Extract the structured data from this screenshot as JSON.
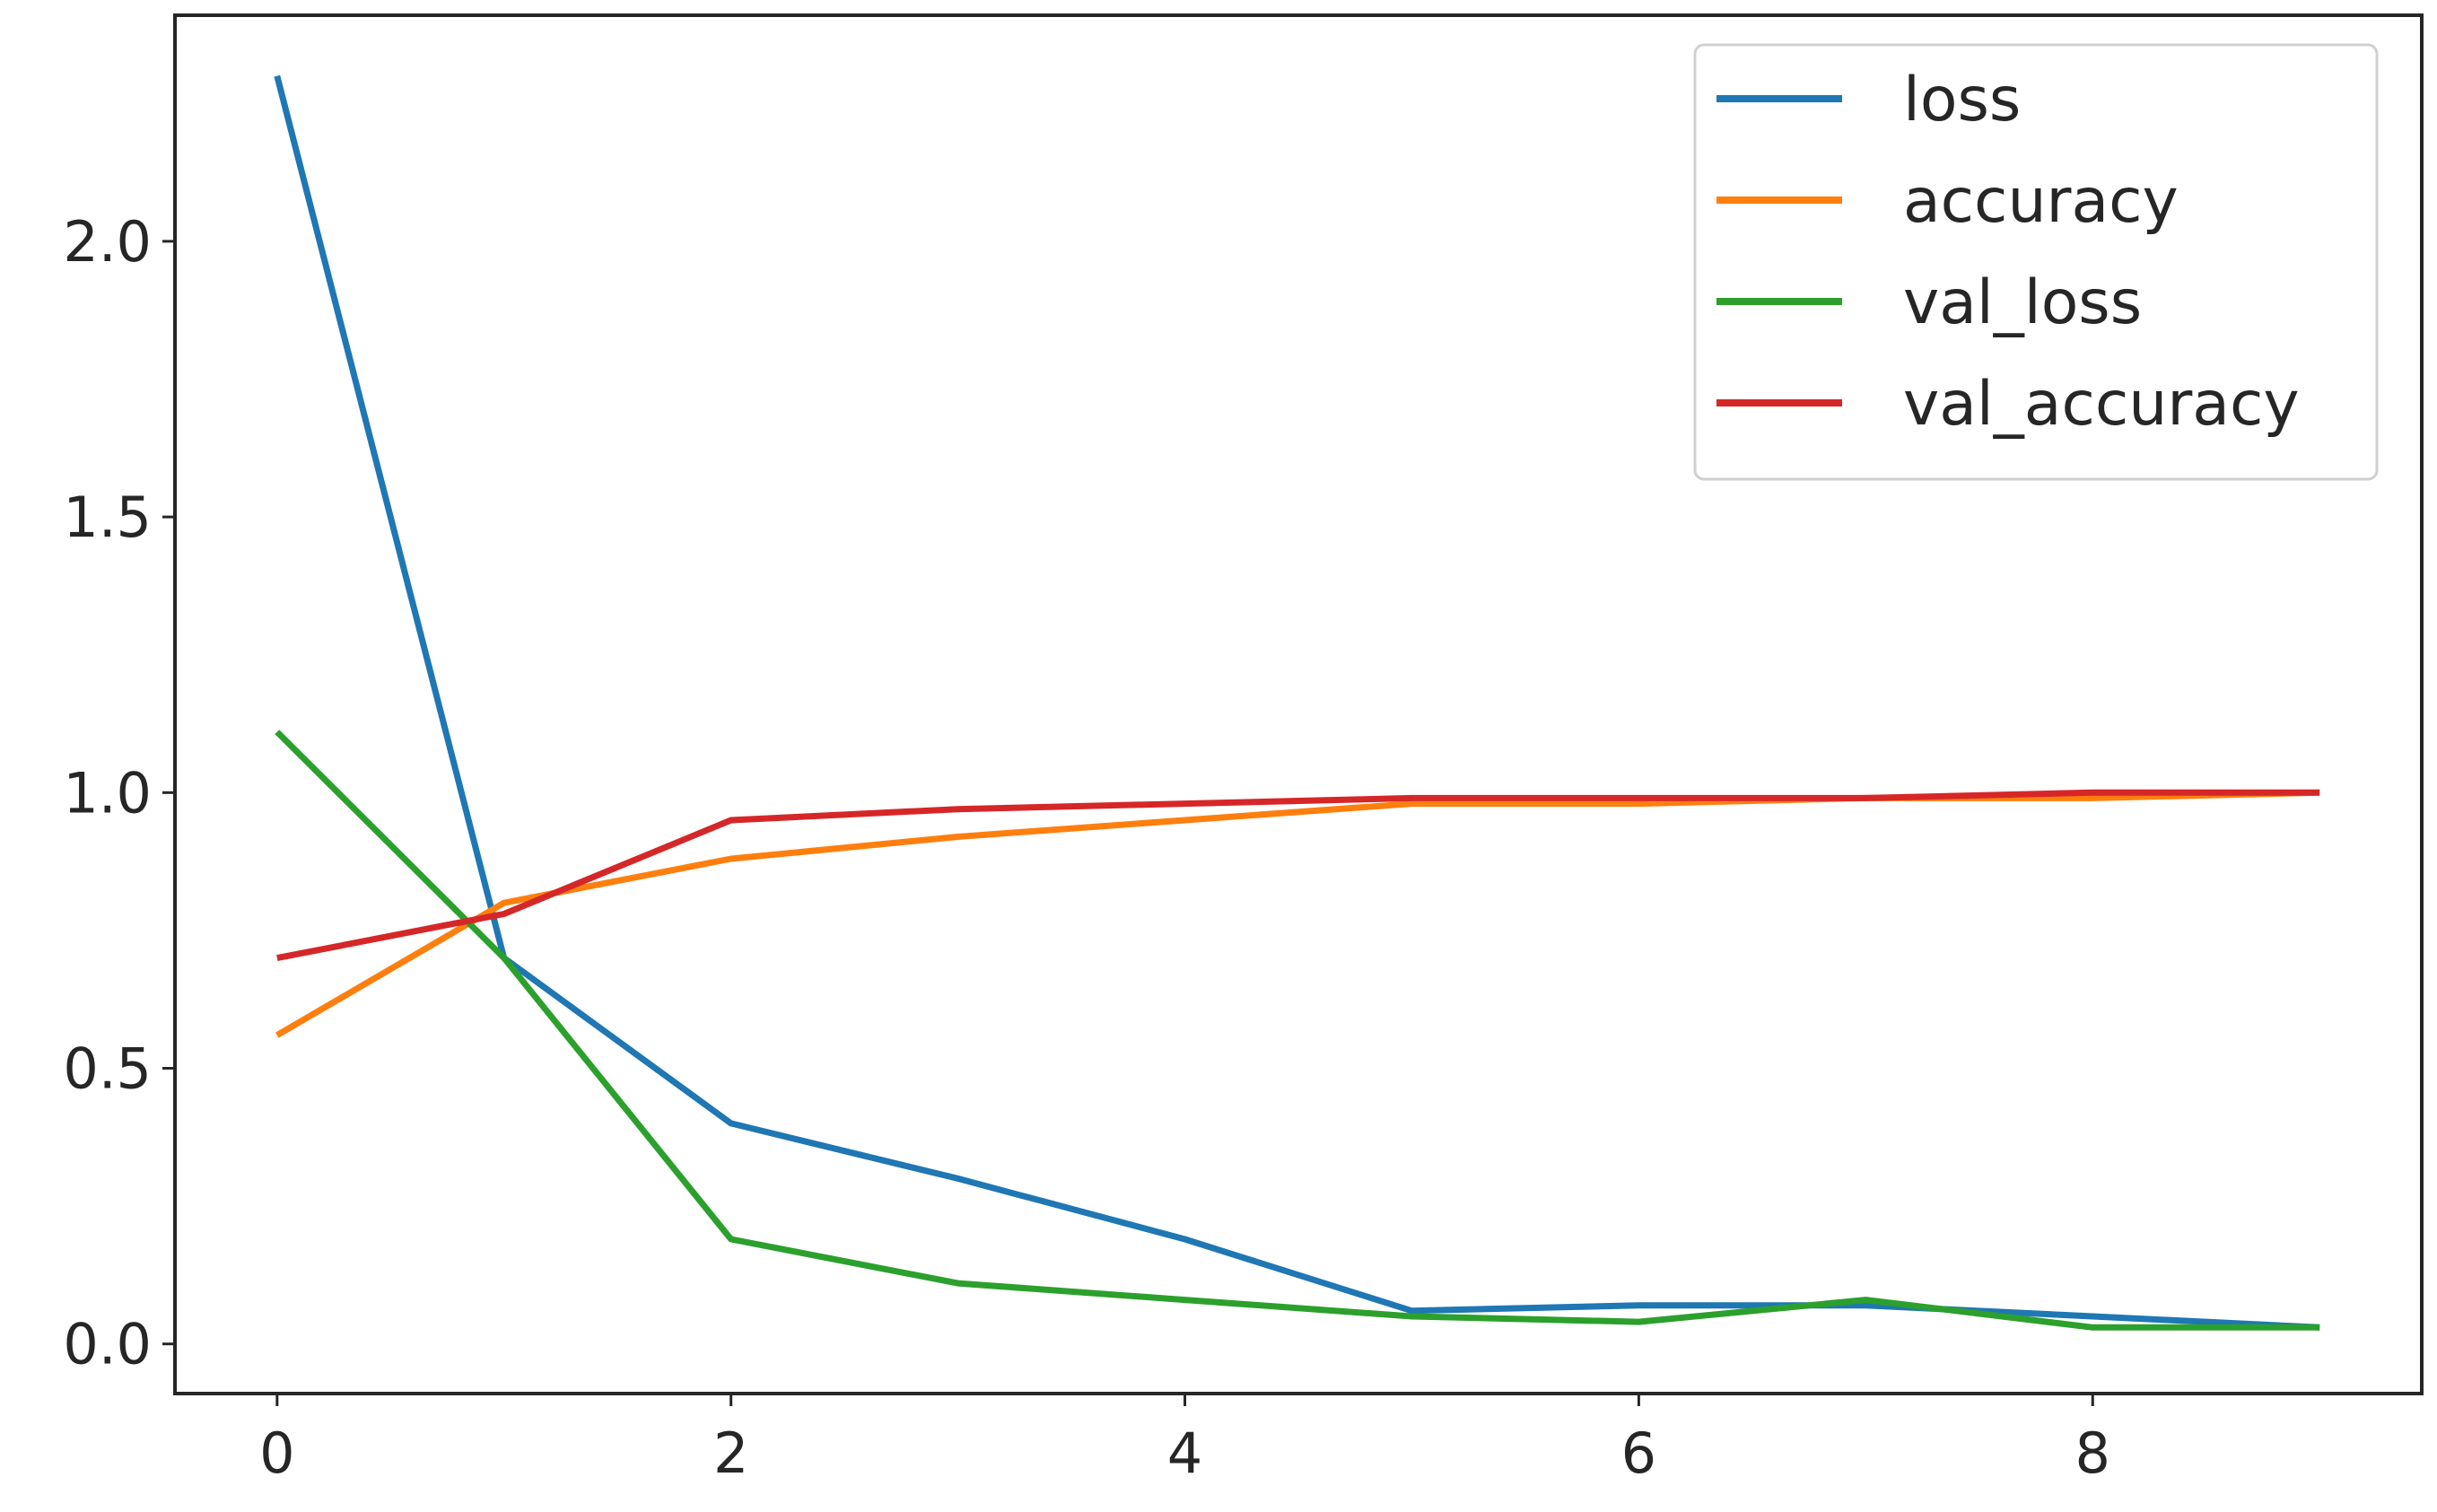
{
  "chart_data": {
    "type": "line",
    "title": "",
    "xlabel": "",
    "ylabel": "",
    "x": [
      0,
      1,
      2,
      3,
      4,
      5,
      6,
      7,
      8,
      9
    ],
    "xlim": [
      -0.45,
      9.45
    ],
    "ylim": [
      -0.09,
      2.41
    ],
    "x_ticks": [
      0,
      2,
      4,
      6,
      8
    ],
    "x_tick_labels": [
      "0",
      "2",
      "4",
      "6",
      "8"
    ],
    "y_ticks": [
      0.0,
      0.5,
      1.0,
      1.5,
      2.0
    ],
    "y_tick_labels": [
      "0.0",
      "0.5",
      "1.0",
      "1.5",
      "2.0"
    ],
    "grid": false,
    "legend_position": "top-right",
    "series": [
      {
        "name": "loss",
        "color": "#1f77b4",
        "values": [
          2.3,
          0.7,
          0.4,
          0.3,
          0.19,
          0.06,
          0.07,
          0.07,
          0.05,
          0.03
        ]
      },
      {
        "name": "accuracy",
        "color": "#ff7f0e",
        "values": [
          0.56,
          0.8,
          0.88,
          0.92,
          0.95,
          0.98,
          0.98,
          0.99,
          0.99,
          1.0
        ]
      },
      {
        "name": "val_loss",
        "color": "#2ca02c",
        "values": [
          1.11,
          0.7,
          0.19,
          0.11,
          0.08,
          0.05,
          0.04,
          0.08,
          0.03,
          0.03
        ]
      },
      {
        "name": "val_accuracy",
        "color": "#d62728",
        "values": [
          0.7,
          0.78,
          0.95,
          0.97,
          0.98,
          0.99,
          0.99,
          0.99,
          1.0,
          1.0
        ]
      }
    ]
  }
}
